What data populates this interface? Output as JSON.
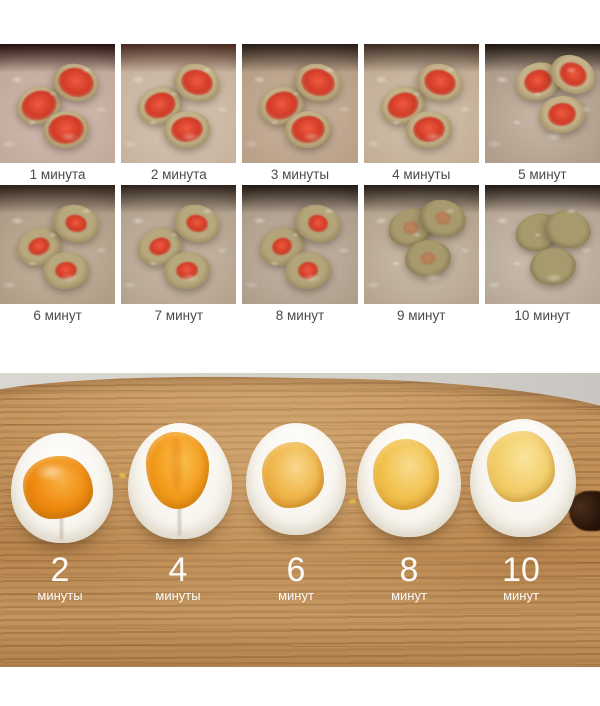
{
  "timeline": {
    "rows": [
      {
        "items": [
          {
            "label": "1 минута"
          },
          {
            "label": "2 минута"
          },
          {
            "label": "3 минуты"
          },
          {
            "label": "4 минуты"
          },
          {
            "label": "5 минут"
          }
        ]
      },
      {
        "items": [
          {
            "label": "6 минут"
          },
          {
            "label": "7 минут"
          },
          {
            "label": "8 минут"
          },
          {
            "label": "9 минут"
          },
          {
            "label": "10 минут"
          }
        ]
      }
    ]
  },
  "result": {
    "items": [
      {
        "number": "2",
        "unit": "минуты",
        "yolk": {
          "light": "#f8b044",
          "base": "#f08c10",
          "deep": "#d87607"
        }
      },
      {
        "number": "4",
        "unit": "минуты",
        "yolk": {
          "light": "#fac253",
          "base": "#f49d1e",
          "deep": "#e08508"
        }
      },
      {
        "number": "6",
        "unit": "минут",
        "yolk": {
          "light": "#f8d98c",
          "base": "#f0b84e",
          "deep": "#e39b2e"
        }
      },
      {
        "number": "8",
        "unit": "минут",
        "yolk": {
          "light": "#f8dc8e",
          "base": "#f2c351",
          "deep": "#e6ab33"
        }
      },
      {
        "number": "10",
        "unit": "минут",
        "yolk": {
          "light": "#f9e49c",
          "base": "#f3d06e",
          "deep": "#e7bc4f"
        }
      }
    ]
  },
  "colors": {
    "page_background": "#ffffff",
    "caption_text": "#4a4a4a",
    "label_text": "#fbfaf7",
    "board_wood": "#c09058",
    "egg_white": "#f8f5ef",
    "pot_water": "#bcab99",
    "raw_yolk_red": "#d13b26"
  }
}
